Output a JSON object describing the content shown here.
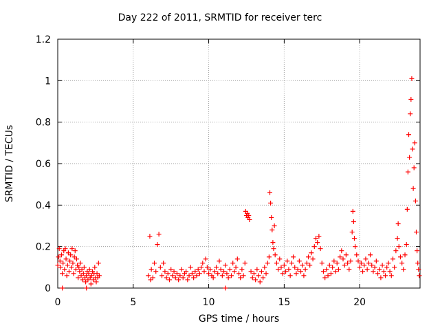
{
  "chart_data": {
    "type": "scatter",
    "title": "Day 222 of 2011, SRMTID for receiver terc",
    "xlabel": "GPS time / hours",
    "ylabel": "SRMTID / TECUs",
    "xlim": [
      0,
      24
    ],
    "ylim": [
      0,
      1.2
    ],
    "xticks": [
      0,
      5,
      10,
      15,
      20
    ],
    "yticks": [
      0,
      0.2,
      0.4,
      0.6,
      0.8,
      1,
      1.2
    ],
    "ytick_labels": [
      "0",
      "0.2",
      "0.4",
      "0.6",
      "0.8",
      "1",
      "1.2"
    ],
    "grid": true,
    "marker": "+",
    "color": "#ff0000",
    "series": [
      {
        "name": "SRMTID",
        "points": [
          [
            0.0,
            0.11
          ],
          [
            0.05,
            0.15
          ],
          [
            0.1,
            0.19
          ],
          [
            0.15,
            0.13
          ],
          [
            0.2,
            0.1
          ],
          [
            0.25,
            0.16
          ],
          [
            0.3,
            0.07
          ],
          [
            0.35,
            0.12
          ],
          [
            0.4,
            0.18
          ],
          [
            0.45,
            0.09
          ],
          [
            0.5,
            0.19
          ],
          [
            0.55,
            0.14
          ],
          [
            0.6,
            0.06
          ],
          [
            0.65,
            0.11
          ],
          [
            0.7,
            0.17
          ],
          [
            0.75,
            0.08
          ],
          [
            0.8,
            0.13
          ],
          [
            0.85,
            0.16
          ],
          [
            0.9,
            0.1
          ],
          [
            0.95,
            0.19
          ],
          [
            1.0,
            0.12
          ],
          [
            1.05,
            0.07
          ],
          [
            1.1,
            0.15
          ],
          [
            1.15,
            0.18
          ],
          [
            1.2,
            0.09
          ],
          [
            1.25,
            0.14
          ],
          [
            1.3,
            0.11
          ],
          [
            1.35,
            0.05
          ],
          [
            1.4,
            0.1
          ],
          [
            1.45,
            0.08
          ],
          [
            1.5,
            0.12
          ],
          [
            1.55,
            0.06
          ],
          [
            1.6,
            0.09
          ],
          [
            1.65,
            0.04
          ],
          [
            1.7,
            0.07
          ],
          [
            1.75,
            0.1
          ],
          [
            1.8,
            0.05
          ],
          [
            1.85,
            0.03
          ],
          [
            1.9,
            0.06
          ],
          [
            1.95,
            0.08
          ],
          [
            2.0,
            0.04
          ],
          [
            2.05,
            0.07
          ],
          [
            2.1,
            0.09
          ],
          [
            2.15,
            0.05
          ],
          [
            2.2,
            0.02
          ],
          [
            2.25,
            0.06
          ],
          [
            2.3,
            0.08
          ],
          [
            2.35,
            0.04
          ],
          [
            2.4,
            0.07
          ],
          [
            2.45,
            0.1
          ],
          [
            2.5,
            0.05
          ],
          [
            2.55,
            0.03
          ],
          [
            2.6,
            0.07
          ],
          [
            2.65,
            0.05
          ],
          [
            2.7,
            0.12
          ],
          [
            2.75,
            0.06
          ],
          [
            0.3,
            0.0
          ],
          [
            1.9,
            0.0
          ],
          [
            11.1,
            0.0
          ],
          [
            6.0,
            0.06
          ],
          [
            6.1,
            0.25
          ],
          [
            6.15,
            0.04
          ],
          [
            6.2,
            0.09
          ],
          [
            6.3,
            0.05
          ],
          [
            6.4,
            0.12
          ],
          [
            6.5,
            0.08
          ],
          [
            6.6,
            0.21
          ],
          [
            6.7,
            0.26
          ],
          [
            6.8,
            0.1
          ],
          [
            6.9,
            0.06
          ],
          [
            7.0,
            0.12
          ],
          [
            7.1,
            0.08
          ],
          [
            7.2,
            0.05
          ],
          [
            7.3,
            0.07
          ],
          [
            7.4,
            0.04
          ],
          [
            7.5,
            0.09
          ],
          [
            7.6,
            0.06
          ],
          [
            7.7,
            0.08
          ],
          [
            7.8,
            0.05
          ],
          [
            7.9,
            0.07
          ],
          [
            8.0,
            0.04
          ],
          [
            8.1,
            0.06
          ],
          [
            8.2,
            0.09
          ],
          [
            8.3,
            0.05
          ],
          [
            8.4,
            0.07
          ],
          [
            8.5,
            0.08
          ],
          [
            8.6,
            0.04
          ],
          [
            8.7,
            0.06
          ],
          [
            8.8,
            0.1
          ],
          [
            8.9,
            0.07
          ],
          [
            9.0,
            0.05
          ],
          [
            9.1,
            0.08
          ],
          [
            9.2,
            0.06
          ],
          [
            9.3,
            0.09
          ],
          [
            9.4,
            0.07
          ],
          [
            9.5,
            0.1
          ],
          [
            9.6,
            0.12
          ],
          [
            9.7,
            0.08
          ],
          [
            9.8,
            0.14
          ],
          [
            9.9,
            0.1
          ],
          [
            10.0,
            0.07
          ],
          [
            10.1,
            0.09
          ],
          [
            10.2,
            0.06
          ],
          [
            10.3,
            0.05
          ],
          [
            10.4,
            0.08
          ],
          [
            10.5,
            0.1
          ],
          [
            10.6,
            0.07
          ],
          [
            10.7,
            0.13
          ],
          [
            10.8,
            0.09
          ],
          [
            10.9,
            0.06
          ],
          [
            11.0,
            0.08
          ],
          [
            11.1,
            0.11
          ],
          [
            11.2,
            0.07
          ],
          [
            11.3,
            0.05
          ],
          [
            11.4,
            0.09
          ],
          [
            11.5,
            0.06
          ],
          [
            11.6,
            0.12
          ],
          [
            11.7,
            0.08
          ],
          [
            11.8,
            0.1
          ],
          [
            11.9,
            0.14
          ],
          [
            12.0,
            0.07
          ],
          [
            12.1,
            0.05
          ],
          [
            12.2,
            0.09
          ],
          [
            12.3,
            0.06
          ],
          [
            12.4,
            0.12
          ],
          [
            12.45,
            0.37
          ],
          [
            12.5,
            0.35
          ],
          [
            12.55,
            0.36
          ],
          [
            12.6,
            0.34
          ],
          [
            12.65,
            0.35
          ],
          [
            12.7,
            0.33
          ],
          [
            12.8,
            0.08
          ],
          [
            12.9,
            0.05
          ],
          [
            13.0,
            0.07
          ],
          [
            13.1,
            0.04
          ],
          [
            13.2,
            0.09
          ],
          [
            13.3,
            0.06
          ],
          [
            13.4,
            0.03
          ],
          [
            13.5,
            0.08
          ],
          [
            13.6,
            0.05
          ],
          [
            13.7,
            0.1
          ],
          [
            13.8,
            0.07
          ],
          [
            13.9,
            0.12
          ],
          [
            14.0,
            0.15
          ],
          [
            14.05,
            0.46
          ],
          [
            14.1,
            0.41
          ],
          [
            14.15,
            0.34
          ],
          [
            14.2,
            0.28
          ],
          [
            14.25,
            0.22
          ],
          [
            14.3,
            0.19
          ],
          [
            14.35,
            0.3
          ],
          [
            14.4,
            0.16
          ],
          [
            14.5,
            0.12
          ],
          [
            14.6,
            0.09
          ],
          [
            14.7,
            0.14
          ],
          [
            14.8,
            0.1
          ],
          [
            14.9,
            0.07
          ],
          [
            15.0,
            0.11
          ],
          [
            15.1,
            0.08
          ],
          [
            15.2,
            0.13
          ],
          [
            15.3,
            0.09
          ],
          [
            15.4,
            0.06
          ],
          [
            15.5,
            0.12
          ],
          [
            15.6,
            0.15
          ],
          [
            15.7,
            0.1
          ],
          [
            15.8,
            0.07
          ],
          [
            15.9,
            0.09
          ],
          [
            16.0,
            0.13
          ],
          [
            16.1,
            0.08
          ],
          [
            16.2,
            0.11
          ],
          [
            16.3,
            0.06
          ],
          [
            16.4,
            0.09
          ],
          [
            16.5,
            0.12
          ],
          [
            16.6,
            0.15
          ],
          [
            16.7,
            0.11
          ],
          [
            16.8,
            0.17
          ],
          [
            16.9,
            0.14
          ],
          [
            17.0,
            0.2
          ],
          [
            17.1,
            0.24
          ],
          [
            17.2,
            0.22
          ],
          [
            17.3,
            0.25
          ],
          [
            17.4,
            0.19
          ],
          [
            17.5,
            0.12
          ],
          [
            17.6,
            0.08
          ],
          [
            17.7,
            0.05
          ],
          [
            17.8,
            0.09
          ],
          [
            17.9,
            0.06
          ],
          [
            18.0,
            0.11
          ],
          [
            18.1,
            0.07
          ],
          [
            18.2,
            0.1
          ],
          [
            18.3,
            0.13
          ],
          [
            18.4,
            0.08
          ],
          [
            18.5,
            0.12
          ],
          [
            18.6,
            0.09
          ],
          [
            18.7,
            0.15
          ],
          [
            18.8,
            0.18
          ],
          [
            18.9,
            0.14
          ],
          [
            19.0,
            0.11
          ],
          [
            19.1,
            0.16
          ],
          [
            19.2,
            0.12
          ],
          [
            19.3,
            0.09
          ],
          [
            19.4,
            0.13
          ],
          [
            19.5,
            0.27
          ],
          [
            19.55,
            0.37
          ],
          [
            19.6,
            0.32
          ],
          [
            19.65,
            0.24
          ],
          [
            19.7,
            0.2
          ],
          [
            19.8,
            0.16
          ],
          [
            19.9,
            0.13
          ],
          [
            20.0,
            0.1
          ],
          [
            20.1,
            0.12
          ],
          [
            20.2,
            0.08
          ],
          [
            20.3,
            0.11
          ],
          [
            20.4,
            0.14
          ],
          [
            20.5,
            0.09
          ],
          [
            20.6,
            0.12
          ],
          [
            20.7,
            0.16
          ],
          [
            20.8,
            0.11
          ],
          [
            20.9,
            0.08
          ],
          [
            21.0,
            0.1
          ],
          [
            21.1,
            0.13
          ],
          [
            21.2,
            0.07
          ],
          [
            21.3,
            0.09
          ],
          [
            21.4,
            0.05
          ],
          [
            21.5,
            0.11
          ],
          [
            21.6,
            0.08
          ],
          [
            21.7,
            0.06
          ],
          [
            21.8,
            0.1
          ],
          [
            21.9,
            0.12
          ],
          [
            22.0,
            0.08
          ],
          [
            22.1,
            0.06
          ],
          [
            22.2,
            0.14
          ],
          [
            22.3,
            0.1
          ],
          [
            22.4,
            0.18
          ],
          [
            22.5,
            0.24
          ],
          [
            22.55,
            0.31
          ],
          [
            22.6,
            0.2
          ],
          [
            22.7,
            0.15
          ],
          [
            22.8,
            0.12
          ],
          [
            22.9,
            0.09
          ],
          [
            23.0,
            0.16
          ],
          [
            23.1,
            0.21
          ],
          [
            23.15,
            0.38
          ],
          [
            23.2,
            0.56
          ],
          [
            23.25,
            0.74
          ],
          [
            23.3,
            0.63
          ],
          [
            23.35,
            0.84
          ],
          [
            23.4,
            0.91
          ],
          [
            23.45,
            1.01
          ],
          [
            23.5,
            0.67
          ],
          [
            23.55,
            0.48
          ],
          [
            23.6,
            0.58
          ],
          [
            23.65,
            0.7
          ],
          [
            23.7,
            0.42
          ],
          [
            23.75,
            0.27
          ],
          [
            23.8,
            0.18
          ],
          [
            23.85,
            0.12
          ],
          [
            23.9,
            0.09
          ],
          [
            23.95,
            0.06
          ]
        ]
      }
    ]
  }
}
